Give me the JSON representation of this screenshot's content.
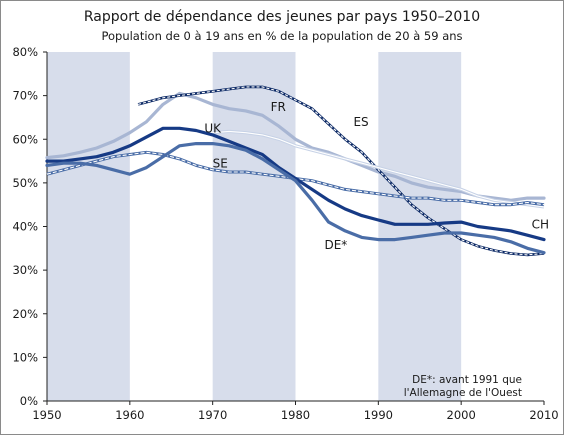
{
  "chart_data": {
    "type": "line",
    "title": "Rapport de dépendance des jeunes par pays 1950–2010",
    "subtitle": "Population de 0 à 19 ans en % de la population de 20 à 59 ans",
    "xlabel": "",
    "ylabel": "",
    "xlim": [
      1950,
      2010
    ],
    "ylim": [
      0,
      80
    ],
    "x_ticks": [
      "1950",
      "1960",
      "1970",
      "1980",
      "1990",
      "2000",
      "2010"
    ],
    "y_ticks": [
      "0%",
      "10%",
      "20%",
      "30%",
      "40%",
      "50%",
      "60%",
      "70%",
      "80%"
    ],
    "shaded_decades": [
      [
        1950,
        1960
      ],
      [
        1970,
        1980
      ],
      [
        1990,
        2000
      ]
    ],
    "grid": false,
    "note": [
      "DE*: avant 1991 que",
      "l'Allemagne de l'Ouest"
    ],
    "series": [
      {
        "name": "FR",
        "label_pos": [
          1977,
          66.5
        ],
        "color": "#a8b6d3",
        "style": "thick",
        "points": [
          [
            1950,
            55.8
          ],
          [
            1952,
            56.2
          ],
          [
            1954,
            57.0
          ],
          [
            1956,
            58.0
          ],
          [
            1958,
            59.5
          ],
          [
            1960,
            61.5
          ],
          [
            1962,
            64.0
          ],
          [
            1964,
            68.0
          ],
          [
            1966,
            70.5
          ],
          [
            1968,
            69.5
          ],
          [
            1970,
            68.0
          ],
          [
            1972,
            67.0
          ],
          [
            1974,
            66.5
          ],
          [
            1976,
            65.5
          ],
          [
            1978,
            63.0
          ],
          [
            1980,
            60.0
          ],
          [
            1982,
            58.0
          ],
          [
            1984,
            57.0
          ],
          [
            1986,
            55.5
          ],
          [
            1988,
            54.0
          ],
          [
            1990,
            52.5
          ],
          [
            1992,
            51.5
          ],
          [
            1994,
            50.0
          ],
          [
            1996,
            49.0
          ],
          [
            1998,
            48.5
          ],
          [
            2000,
            48.0
          ],
          [
            2002,
            47.0
          ],
          [
            2004,
            46.5
          ],
          [
            2006,
            46.0
          ],
          [
            2008,
            46.5
          ],
          [
            2010,
            46.5
          ]
        ]
      },
      {
        "name": "ES",
        "label_pos": [
          1987,
          63
        ],
        "color": "#0d2a66",
        "style": "dashed",
        "points": [
          [
            1961,
            68.0
          ],
          [
            1962,
            68.5
          ],
          [
            1964,
            69.5
          ],
          [
            1966,
            70.0
          ],
          [
            1968,
            70.5
          ],
          [
            1970,
            71.0
          ],
          [
            1972,
            71.5
          ],
          [
            1974,
            72.0
          ],
          [
            1976,
            72.0
          ],
          [
            1978,
            71.0
          ],
          [
            1980,
            69.0
          ],
          [
            1982,
            67.0
          ],
          [
            1984,
            63.5
          ],
          [
            1986,
            60.0
          ],
          [
            1988,
            57.0
          ],
          [
            1990,
            53.0
          ],
          [
            1992,
            49.0
          ],
          [
            1994,
            45.0
          ],
          [
            1996,
            42.0
          ],
          [
            1998,
            39.5
          ],
          [
            2000,
            37.0
          ],
          [
            2002,
            35.5
          ],
          [
            2004,
            34.5
          ],
          [
            2006,
            33.8
          ],
          [
            2008,
            33.5
          ],
          [
            2010,
            33.8
          ]
        ]
      },
      {
        "name": "UK",
        "label_pos": [
          1969,
          61.5
        ],
        "color": "#c7d2e6",
        "style": "outline",
        "points": [
          [
            1970,
            61.5
          ],
          [
            1972,
            61.8
          ],
          [
            1974,
            61.5
          ],
          [
            1976,
            61.0
          ],
          [
            1978,
            60.0
          ],
          [
            1980,
            58.5
          ],
          [
            1982,
            57.5
          ],
          [
            1984,
            56.5
          ],
          [
            1986,
            55.5
          ],
          [
            1988,
            54.5
          ],
          [
            1990,
            53.5
          ],
          [
            1992,
            52.5
          ],
          [
            1994,
            51.5
          ],
          [
            1996,
            50.5
          ],
          [
            1998,
            49.5
          ],
          [
            2000,
            48.5
          ],
          [
            2002,
            47.0
          ],
          [
            2004,
            46.0
          ],
          [
            2006,
            45.5
          ],
          [
            2008,
            45.0
          ],
          [
            2010,
            44.5
          ]
        ]
      },
      {
        "name": "SE",
        "label_pos": [
          1970,
          53.5
        ],
        "color": "#4a6da7",
        "style": "dashed-outline",
        "points": [
          [
            1950,
            52.0
          ],
          [
            1952,
            53.0
          ],
          [
            1954,
            54.0
          ],
          [
            1956,
            55.0
          ],
          [
            1958,
            56.0
          ],
          [
            1960,
            56.5
          ],
          [
            1962,
            57.0
          ],
          [
            1964,
            56.5
          ],
          [
            1966,
            55.5
          ],
          [
            1968,
            54.0
          ],
          [
            1970,
            53.0
          ],
          [
            1972,
            52.5
          ],
          [
            1974,
            52.5
          ],
          [
            1976,
            52.0
          ],
          [
            1978,
            51.5
          ],
          [
            1980,
            51.0
          ],
          [
            1982,
            50.5
          ],
          [
            1984,
            49.5
          ],
          [
            1986,
            48.5
          ],
          [
            1988,
            48.0
          ],
          [
            1990,
            47.5
          ],
          [
            1992,
            47.0
          ],
          [
            1994,
            46.5
          ],
          [
            1996,
            46.5
          ],
          [
            1998,
            46.0
          ],
          [
            2000,
            46.0
          ],
          [
            2002,
            45.5
          ],
          [
            2004,
            45.0
          ],
          [
            2006,
            45.0
          ],
          [
            2008,
            45.5
          ],
          [
            2010,
            45.0
          ]
        ]
      },
      {
        "name": "CH",
        "label_pos": [
          2008.5,
          39.5
        ],
        "color": "#163a85",
        "style": "thick",
        "points": [
          [
            1950,
            55.0
          ],
          [
            1952,
            55.0
          ],
          [
            1954,
            55.5
          ],
          [
            1956,
            56.0
          ],
          [
            1958,
            57.0
          ],
          [
            1960,
            58.5
          ],
          [
            1962,
            60.5
          ],
          [
            1964,
            62.5
          ],
          [
            1966,
            62.5
          ],
          [
            1968,
            62.0
          ],
          [
            1970,
            61.0
          ],
          [
            1972,
            59.5
          ],
          [
            1974,
            58.0
          ],
          [
            1976,
            56.5
          ],
          [
            1978,
            53.5
          ],
          [
            1980,
            51.0
          ],
          [
            1982,
            48.5
          ],
          [
            1984,
            46.0
          ],
          [
            1986,
            44.0
          ],
          [
            1988,
            42.5
          ],
          [
            1990,
            41.5
          ],
          [
            1992,
            40.5
          ],
          [
            1994,
            40.5
          ],
          [
            1996,
            40.5
          ],
          [
            1998,
            40.8
          ],
          [
            2000,
            41.0
          ],
          [
            2002,
            40.0
          ],
          [
            2004,
            39.5
          ],
          [
            2006,
            39.0
          ],
          [
            2008,
            38.0
          ],
          [
            2010,
            37.0
          ]
        ]
      },
      {
        "name": "DE*",
        "label_pos": [
          1983.5,
          34.8
        ],
        "color": "#4a6da7",
        "style": "thick",
        "points": [
          [
            1950,
            54.0
          ],
          [
            1952,
            54.5
          ],
          [
            1954,
            54.5
          ],
          [
            1956,
            54.0
          ],
          [
            1958,
            53.0
          ],
          [
            1960,
            52.0
          ],
          [
            1962,
            53.5
          ],
          [
            1964,
            56.0
          ],
          [
            1966,
            58.5
          ],
          [
            1968,
            59.0
          ],
          [
            1970,
            59.0
          ],
          [
            1972,
            58.5
          ],
          [
            1974,
            57.5
          ],
          [
            1976,
            55.5
          ],
          [
            1978,
            53.0
          ],
          [
            1980,
            50.5
          ],
          [
            1982,
            46.0
          ],
          [
            1984,
            41.0
          ],
          [
            1986,
            39.0
          ],
          [
            1988,
            37.5
          ],
          [
            1990,
            37.0
          ],
          [
            1992,
            37.0
          ],
          [
            1994,
            37.5
          ],
          [
            1996,
            38.0
          ],
          [
            1998,
            38.5
          ],
          [
            2000,
            38.5
          ],
          [
            2002,
            38.0
          ],
          [
            2004,
            37.5
          ],
          [
            2006,
            36.5
          ],
          [
            2008,
            35.0
          ],
          [
            2010,
            34.0
          ]
        ]
      }
    ]
  }
}
